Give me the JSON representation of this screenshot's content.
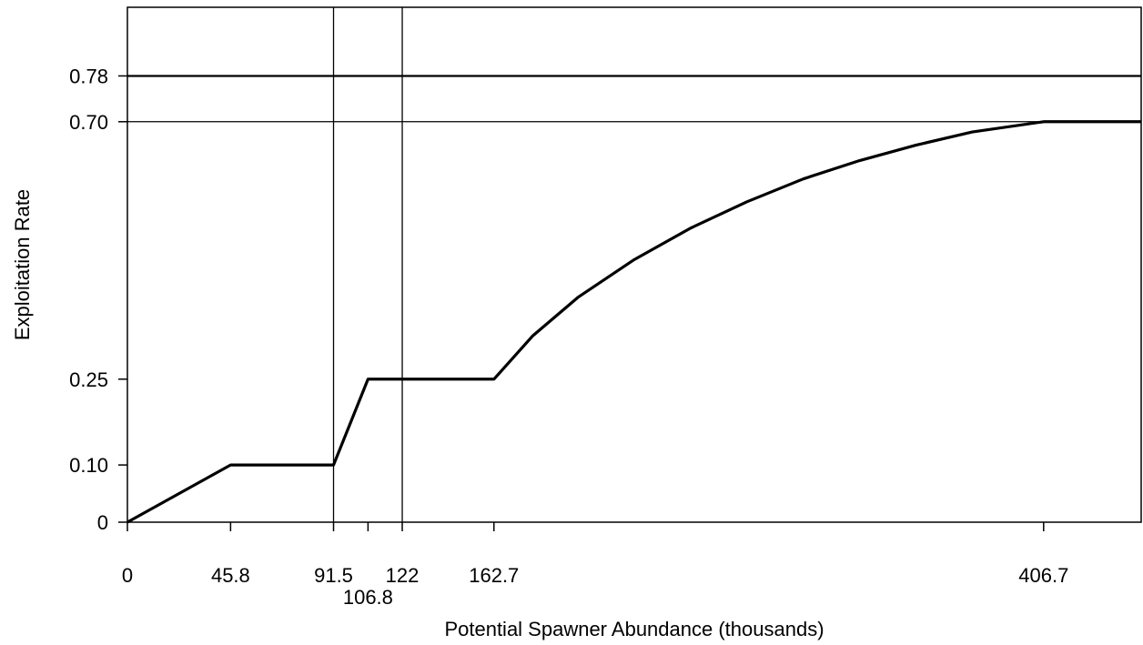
{
  "chart_data": {
    "type": "line",
    "title": "",
    "xlabel": "Potential Spawner Abundance (thousands)",
    "ylabel": "Exploitation Rate",
    "xlim": [
      0,
      450
    ],
    "ylim": [
      0,
      0.9
    ],
    "grid": false,
    "legend": "none",
    "x_ticks": [
      {
        "value": 0,
        "label": "0",
        "row": 1
      },
      {
        "value": 45.8,
        "label": "45.8",
        "row": 1
      },
      {
        "value": 91.5,
        "label": "91.5",
        "row": 1
      },
      {
        "value": 106.8,
        "label": "106.8",
        "row": 2
      },
      {
        "value": 122,
        "label": "122",
        "row": 1
      },
      {
        "value": 162.7,
        "label": "162.7",
        "row": 1
      },
      {
        "value": 406.7,
        "label": "406.7",
        "row": 1
      }
    ],
    "y_ticks": [
      {
        "value": 0,
        "label": "0"
      },
      {
        "value": 0.1,
        "label": "0.10"
      },
      {
        "value": 0.25,
        "label": "0.25"
      },
      {
        "value": 0.7,
        "label": "0.70"
      },
      {
        "value": 0.78,
        "label": "0.78"
      }
    ],
    "reference_lines": {
      "vertical": [
        91.5,
        122
      ],
      "horizontal": [
        {
          "value": 0.78,
          "weight": "heavy"
        },
        {
          "value": 0.7,
          "weight": "light"
        }
      ]
    },
    "series": [
      {
        "x": [
          0,
          45.8,
          91.5,
          106.8,
          162.7,
          180,
          200,
          225,
          250,
          275,
          300,
          325,
          350,
          375,
          406.7,
          450
        ],
        "y": [
          0,
          0.1,
          0.1,
          0.25,
          0.25,
          0.326,
          0.393,
          0.459,
          0.514,
          0.56,
          0.6,
          0.632,
          0.659,
          0.682,
          0.7,
          0.7
        ]
      }
    ]
  }
}
